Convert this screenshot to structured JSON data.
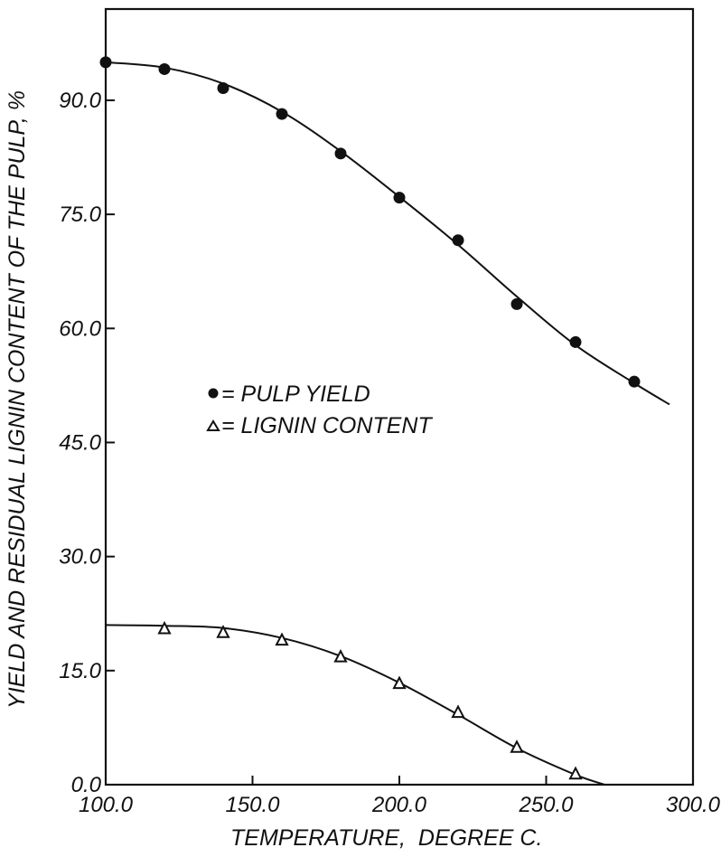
{
  "chart_data": {
    "type": "scatter",
    "title": "",
    "xlabel": "TEMPERATURE,  DEGREE C.",
    "ylabel": "YIELD AND RESIDUAL LIGNIN CONTENT OF THE PULP, %",
    "xlim": [
      100,
      300
    ],
    "ylim": [
      0,
      102
    ],
    "x_ticks": [
      "100.0",
      "150.0",
      "200.0",
      "250.0",
      "300.0"
    ],
    "y_ticks": [
      "0.0",
      "15.0",
      "30.0",
      "45.0",
      "60.0",
      "75.0",
      "90.0"
    ],
    "grid": false,
    "legend_position": "center-left",
    "series": [
      {
        "name": "PULP YIELD",
        "legend_label": "= PULP YIELD",
        "marker": "filled-circle",
        "x": [
          100,
          120,
          140,
          160,
          180,
          200,
          220,
          240,
          260,
          280
        ],
        "y": [
          95.0,
          94.1,
          91.6,
          88.2,
          83.0,
          77.2,
          71.6,
          63.2,
          58.2,
          53.0
        ],
        "fit_curve": {
          "x": [
            100,
            120,
            140,
            160,
            180,
            200,
            220,
            240,
            260,
            280,
            292
          ],
          "y": [
            95.0,
            94.3,
            92.2,
            88.5,
            83.3,
            77.3,
            71.0,
            64.2,
            57.8,
            52.8,
            50.0
          ]
        }
      },
      {
        "name": "LIGNIN CONTENT",
        "legend_label": "= LIGNIN CONTENT",
        "marker": "open-triangle",
        "x": [
          120,
          140,
          160,
          180,
          200,
          220,
          240,
          260
        ],
        "y": [
          20.5,
          20.0,
          19.0,
          16.8,
          13.3,
          9.5,
          4.9,
          1.4
        ],
        "fit_curve": {
          "x": [
            100,
            120,
            140,
            160,
            180,
            200,
            220,
            240,
            260,
            270
          ],
          "y": [
            21.0,
            20.9,
            20.6,
            19.3,
            16.9,
            13.4,
            9.2,
            4.8,
            1.3,
            0.0
          ]
        }
      }
    ]
  }
}
